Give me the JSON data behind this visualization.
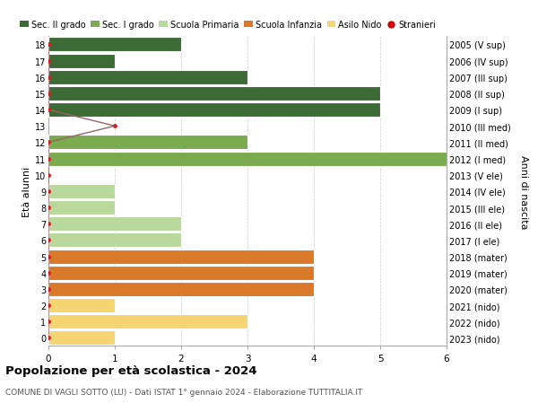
{
  "ages": [
    18,
    17,
    16,
    15,
    14,
    13,
    12,
    11,
    10,
    9,
    8,
    7,
    6,
    5,
    4,
    3,
    2,
    1,
    0
  ],
  "right_labels": [
    "2005 (V sup)",
    "2006 (IV sup)",
    "2007 (III sup)",
    "2008 (II sup)",
    "2009 (I sup)",
    "2010 (III med)",
    "2011 (II med)",
    "2012 (I med)",
    "2013 (V ele)",
    "2014 (IV ele)",
    "2015 (III ele)",
    "2016 (II ele)",
    "2017 (I ele)",
    "2018 (mater)",
    "2019 (mater)",
    "2020 (mater)",
    "2021 (nido)",
    "2022 (nido)",
    "2023 (nido)"
  ],
  "bar_values": [
    2,
    1,
    3,
    5,
    5,
    0,
    3,
    6,
    0,
    1,
    1,
    2,
    2,
    4,
    4,
    4,
    1,
    3,
    1
  ],
  "bar_colors": [
    "#3d6b35",
    "#3d6b35",
    "#3d6b35",
    "#3d6b35",
    "#3d6b35",
    "#7aab50",
    "#7aab50",
    "#7aab50",
    "#b8d89c",
    "#b8d89c",
    "#b8d89c",
    "#b8d89c",
    "#b8d89c",
    "#d9792a",
    "#d9792a",
    "#d9792a",
    "#f5d472",
    "#f5d472",
    "#f5d472"
  ],
  "stranieri_x": [
    0,
    0,
    0,
    0,
    0,
    1,
    0,
    0,
    0,
    0,
    0,
    0,
    0,
    0,
    0,
    0,
    0,
    0,
    0
  ],
  "legend_labels": [
    "Sec. II grado",
    "Sec. I grado",
    "Scuola Primaria",
    "Scuola Infanzia",
    "Asilo Nido",
    "Stranieri"
  ],
  "legend_colors": [
    "#3d6b35",
    "#7aab50",
    "#b8d89c",
    "#d9792a",
    "#f5d472",
    "#cc0000"
  ],
  "title": "Popolazione per età scolastica - 2024",
  "subtitle": "COMUNE DI VAGLI SOTTO (LU) - Dati ISTAT 1° gennaio 2024 - Elaborazione TUTTITALIA.IT",
  "ylabel_left": "Età alunni",
  "ylabel_right": "Anni di nascita",
  "xlim": [
    0,
    6
  ],
  "background_color": "#ffffff",
  "grid_color": "#cccccc"
}
